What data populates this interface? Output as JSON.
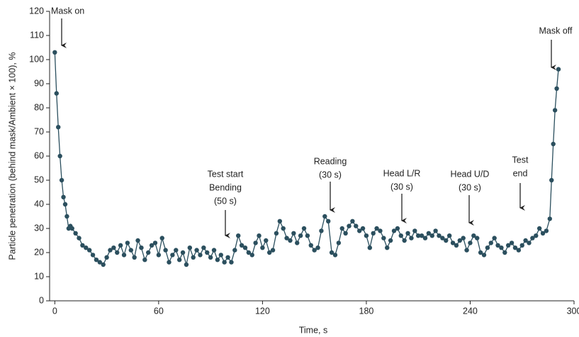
{
  "chart_data": {
    "type": "line",
    "x_label": "Time, s",
    "y_label": "Particle penetration (behind mask/Ambient × 100), %",
    "xlim": [
      -3,
      300
    ],
    "xticks": [
      0,
      60,
      120,
      180,
      240,
      300
    ],
    "ylim": [
      0,
      120
    ],
    "yticks": [
      0,
      10,
      20,
      30,
      40,
      50,
      60,
      70,
      80,
      90,
      100,
      110,
      120
    ],
    "grid": false,
    "series": [
      {
        "color": "#2b4f5e",
        "x": [
          0,
          1,
          2,
          3,
          4,
          5,
          6,
          7,
          8,
          9,
          10,
          12,
          14,
          16,
          18,
          20,
          22,
          24,
          26,
          28,
          30,
          32,
          34,
          36,
          38,
          40,
          42,
          44,
          46,
          48,
          50,
          52,
          54,
          56,
          58,
          60,
          62,
          64,
          66,
          68,
          70,
          72,
          74,
          76,
          78,
          80,
          82,
          84,
          86,
          88,
          90,
          92,
          94,
          96,
          98,
          100,
          102,
          104,
          106,
          108,
          110,
          112,
          114,
          116,
          118,
          120,
          122,
          124,
          126,
          128,
          130,
          132,
          134,
          136,
          138,
          140,
          142,
          144,
          146,
          148,
          150,
          152,
          154,
          156,
          158,
          160,
          162,
          164,
          166,
          168,
          170,
          172,
          174,
          176,
          178,
          180,
          182,
          184,
          186,
          188,
          190,
          192,
          194,
          196,
          198,
          200,
          202,
          204,
          206,
          208,
          210,
          212,
          214,
          216,
          218,
          220,
          222,
          224,
          226,
          228,
          230,
          232,
          234,
          236,
          238,
          240,
          242,
          244,
          246,
          248,
          250,
          252,
          254,
          256,
          258,
          260,
          262,
          264,
          266,
          268,
          270,
          272,
          274,
          276,
          278,
          280,
          282,
          284,
          286,
          287,
          288,
          289,
          290,
          291
        ],
        "values": [
          103,
          86,
          72,
          60,
          50,
          43,
          40,
          35,
          30,
          31,
          30,
          28,
          26,
          23,
          22,
          21,
          19,
          17,
          16,
          15,
          18,
          21,
          22,
          20,
          23,
          19,
          24,
          21,
          18,
          25,
          22,
          17,
          20,
          23,
          24,
          19,
          26,
          21,
          16,
          19,
          21,
          17,
          20,
          15,
          22,
          18,
          21,
          19,
          22,
          20,
          18,
          21,
          17,
          19,
          16,
          18,
          16,
          21,
          27,
          23,
          22,
          20,
          19,
          24,
          27,
          22,
          25,
          20,
          21,
          28,
          33,
          30,
          26,
          25,
          28,
          24,
          27,
          30,
          27,
          23,
          21,
          22,
          29,
          35,
          33,
          20,
          19,
          24,
          30,
          28,
          31,
          33,
          31,
          29,
          30,
          27,
          22,
          28,
          30,
          29,
          26,
          22,
          25,
          29,
          30,
          27,
          25,
          28,
          26,
          29,
          27,
          27,
          26,
          28,
          27,
          29,
          27,
          26,
          25,
          27,
          24,
          23,
          25,
          26,
          21,
          24,
          27,
          26,
          20,
          19,
          22,
          24,
          26,
          23,
          22,
          20,
          23,
          24,
          22,
          21,
          23,
          25,
          24,
          26,
          27,
          30,
          28,
          29,
          34,
          50,
          65,
          79,
          88,
          96
        ]
      }
    ],
    "annotations": [
      {
        "lines": [
          "Mask on"
        ]
      },
      {
        "lines": [
          "Test start",
          "Bending",
          "(50 s)"
        ]
      },
      {
        "lines": [
          "Reading",
          "(30 s)"
        ]
      },
      {
        "lines": [
          "Head L/R",
          "(30 s)"
        ]
      },
      {
        "lines": [
          "Head U/D",
          "(30 s)"
        ]
      },
      {
        "lines": [
          "Test",
          "end"
        ]
      },
      {
        "lines": [
          "Mask off"
        ]
      }
    ]
  }
}
